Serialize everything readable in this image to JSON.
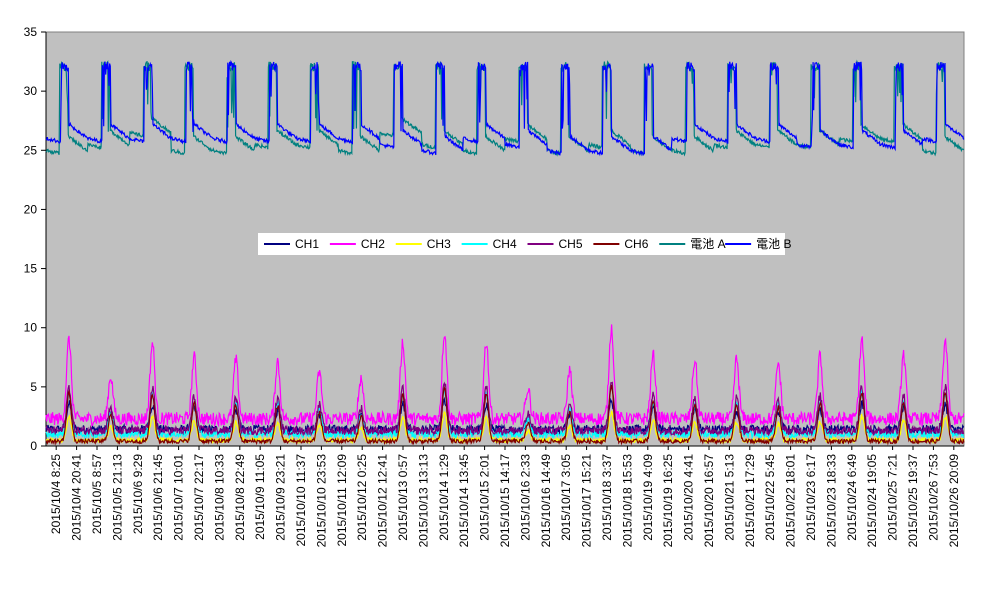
{
  "chart_data": {
    "type": "line",
    "title": "",
    "xlabel": "",
    "ylabel": "",
    "ylim": [
      0,
      35
    ],
    "yticks": [
      0,
      5,
      10,
      15,
      20,
      25,
      30,
      35
    ],
    "grid": false,
    "legend_position": "center",
    "plot_background": "#c0c0c0",
    "x_tick_labels": [
      "2015/10/4 8:25",
      "2015/10/4 20:41",
      "2015/10/5 8:57",
      "2015/10/5 21:13",
      "2015/10/6 9:29",
      "2015/10/6 21:45",
      "2015/10/7 10:01",
      "2015/10/7 22:17",
      "2015/10/8 10:33",
      "2015/10/8 22:49",
      "2015/10/9 11:05",
      "2015/10/9 23:21",
      "2015/10/10 11:37",
      "2015/10/10 23:53",
      "2015/10/11 12:09",
      "2015/10/12 0:25",
      "2015/10/12 12:41",
      "2015/10/13 0:57",
      "2015/10/13 13:13",
      "2015/10/14 1:29",
      "2015/10/14 13:45",
      "2015/10/15 2:01",
      "2015/10/15 14:17",
      "2015/10/16 2:33",
      "2015/10/16 14:49",
      "2015/10/17 3:05",
      "2015/10/17 15:21",
      "2015/10/18 3:37",
      "2015/10/18 15:53",
      "2015/10/19 4:09",
      "2015/10/19 16:25",
      "2015/10/20 4:41",
      "2015/10/20 16:57",
      "2015/10/21 5:13",
      "2015/10/21 17:29",
      "2015/10/22 5:45",
      "2015/10/22 18:01",
      "2015/10/23 6:17",
      "2015/10/23 18:33",
      "2015/10/24 6:49",
      "2015/10/24 19:05",
      "2015/10/25 7:21",
      "2015/10/25 19:37",
      "2015/10/26 7:53",
      "2015/10/26 20:09"
    ],
    "day_peaks_power": [
      9.3,
      5.0,
      8.9,
      7.2,
      6.9,
      6.8,
      5.5,
      4.8,
      9.0,
      10.2,
      9.1,
      3.5,
      5.8,
      10.8,
      7.5,
      6.9,
      7.0,
      6.5,
      7.3,
      9.4,
      7.5,
      9.2
    ],
    "battery_a_levels": [
      25.0,
      25.5,
      26.5,
      25.0,
      25.0,
      25.5,
      25.5,
      25.0,
      26.5,
      25.5,
      25.0,
      26.0,
      25.0,
      25.5,
      25.0,
      25.0,
      25.5,
      25.5,
      25.5,
      26.0,
      26.0,
      25.0
    ],
    "battery_b_levels": [
      26.0,
      26.0,
      26.0,
      26.0,
      26.0,
      26.0,
      26.0,
      26.0,
      25.5,
      25.0,
      26.0,
      25.5,
      25.0,
      25.0,
      25.0,
      26.0,
      26.0,
      26.0,
      25.5,
      25.5,
      25.5,
      26.0
    ],
    "series": [
      {
        "name": "CH1",
        "color": "#000080",
        "base": 1.4,
        "peak": 3.6
      },
      {
        "name": "CH2",
        "color": "#ff00ff",
        "base": 2.3,
        "peak": 9.0
      },
      {
        "name": "CH3",
        "color": "#ffff00",
        "base": 0.5,
        "peak": 2.5
      },
      {
        "name": "CH4",
        "color": "#00ffff",
        "base": 1.0,
        "peak": 4.5
      },
      {
        "name": "CH5",
        "color": "#800080",
        "base": 1.3,
        "peak": 5.0
      },
      {
        "name": "CH6",
        "color": "#800000",
        "base": 0.4,
        "peak": 4.5
      },
      {
        "name": "電池 A",
        "color": "#008080",
        "base": 25.0,
        "peak": 32.5
      },
      {
        "name": "電池 B",
        "color": "#0000ff",
        "base": 25.5,
        "peak": 32.5
      }
    ]
  }
}
